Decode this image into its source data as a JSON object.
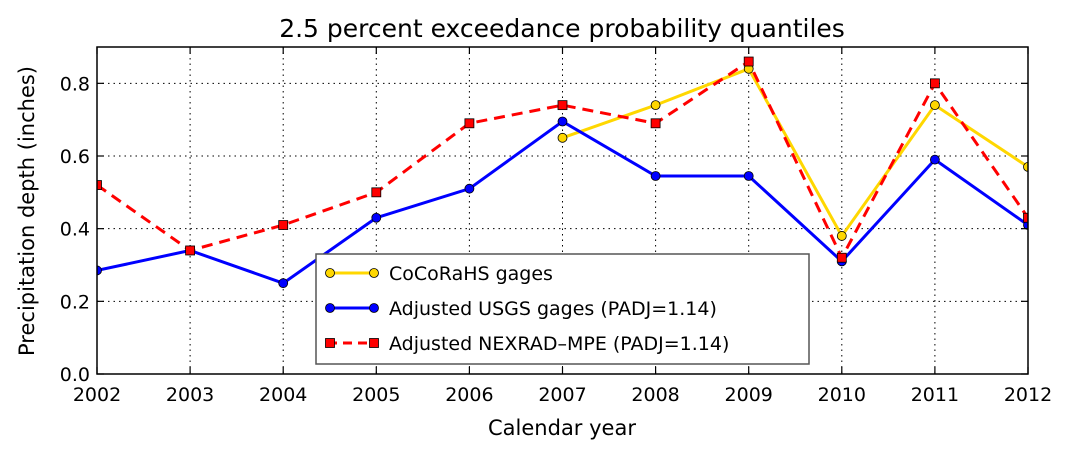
{
  "chart_data": {
    "type": "line",
    "title": "2.5 percent exceedance probability quantiles",
    "xlabel": "Calendar year",
    "ylabel": "Precipitation depth (inches)",
    "xlim": [
      2002,
      2012
    ],
    "ylim": [
      0.0,
      0.9
    ],
    "x_ticks": [
      "2002",
      "2003",
      "2004",
      "2005",
      "2006",
      "2007",
      "2008",
      "2009",
      "2010",
      "2011",
      "2012"
    ],
    "y_ticks": [
      "0.0",
      "0.2",
      "0.4",
      "0.6",
      "0.8"
    ],
    "grid": true,
    "legend_position": "lower-center",
    "series": [
      {
        "name": "CoCoRaHS gages",
        "color": "#ffd700",
        "marker": "circle",
        "dash": "solid",
        "x": [
          2007,
          2008,
          2009,
          2010,
          2011,
          2012
        ],
        "values": [
          0.65,
          0.74,
          0.84,
          0.38,
          0.74,
          0.57
        ]
      },
      {
        "name": "Adjusted USGS gages (PADJ=1.14)",
        "color": "#0000ff",
        "marker": "circle",
        "dash": "solid",
        "x": [
          2002,
          2003,
          2004,
          2005,
          2006,
          2007,
          2008,
          2009,
          2010,
          2011,
          2012
        ],
        "values": [
          0.285,
          0.34,
          0.25,
          0.43,
          0.51,
          0.695,
          0.545,
          0.545,
          0.31,
          0.59,
          0.41
        ]
      },
      {
        "name": "Adjusted NEXRAD–MPE (PADJ=1.14)",
        "color": "#ff0000",
        "marker": "square",
        "dash": "dashed",
        "x": [
          2002,
          2003,
          2004,
          2005,
          2006,
          2007,
          2008,
          2009,
          2010,
          2011,
          2012
        ],
        "values": [
          0.52,
          0.34,
          0.41,
          0.5,
          0.69,
          0.74,
          0.69,
          0.86,
          0.32,
          0.8,
          0.43
        ]
      }
    ]
  }
}
